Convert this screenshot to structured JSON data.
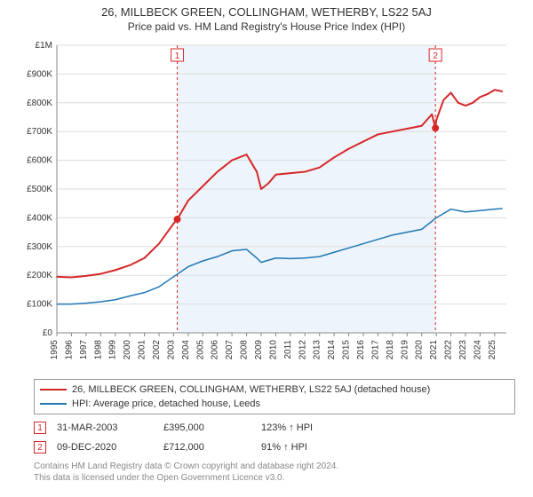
{
  "title": "26, MILLBECK GREEN, COLLINGHAM, WETHERBY, LS22 5AJ",
  "subtitle": "Price paid vs. HM Land Registry's House Price Index (HPI)",
  "chart": {
    "type": "line",
    "background_color": "#ffffff",
    "plot_shade_color": "#eef4fb",
    "grid_color": "#dddddd",
    "axis_color": "#888888",
    "xlim": [
      1995,
      2025.8
    ],
    "ylim": [
      0,
      1000000
    ],
    "ytick_step": 100000,
    "ytick_labels": [
      "£0",
      "£100K",
      "£200K",
      "£300K",
      "£400K",
      "£500K",
      "£600K",
      "£700K",
      "£800K",
      "£900K",
      "£1M"
    ],
    "xtick_step": 1,
    "xtick_labels": [
      "1995",
      "1996",
      "1997",
      "1998",
      "1999",
      "2000",
      "2001",
      "2002",
      "2003",
      "2004",
      "2005",
      "2006",
      "2007",
      "2008",
      "2009",
      "2010",
      "2011",
      "2012",
      "2013",
      "2014",
      "2015",
      "2016",
      "2017",
      "2018",
      "2019",
      "2020",
      "2021",
      "2022",
      "2023",
      "2024",
      "2025"
    ],
    "shade_start_year": 2003.25,
    "shade_end_year": 2020.94,
    "series": [
      {
        "name": "property",
        "color": "#d62728",
        "width": 2,
        "points": [
          [
            1995,
            195000
          ],
          [
            1996,
            193000
          ],
          [
            1997,
            198000
          ],
          [
            1998,
            205000
          ],
          [
            1999,
            218000
          ],
          [
            2000,
            235000
          ],
          [
            2001,
            260000
          ],
          [
            2002,
            310000
          ],
          [
            2003,
            380000
          ],
          [
            2003.25,
            395000
          ],
          [
            2004,
            460000
          ],
          [
            2005,
            510000
          ],
          [
            2006,
            560000
          ],
          [
            2007,
            600000
          ],
          [
            2008,
            620000
          ],
          [
            2008.7,
            560000
          ],
          [
            2009,
            500000
          ],
          [
            2009.5,
            520000
          ],
          [
            2010,
            550000
          ],
          [
            2011,
            555000
          ],
          [
            2012,
            560000
          ],
          [
            2013,
            575000
          ],
          [
            2014,
            610000
          ],
          [
            2015,
            640000
          ],
          [
            2016,
            665000
          ],
          [
            2017,
            690000
          ],
          [
            2018,
            700000
          ],
          [
            2019,
            710000
          ],
          [
            2020,
            720000
          ],
          [
            2020.7,
            760000
          ],
          [
            2020.94,
            712000
          ],
          [
            2021,
            740000
          ],
          [
            2021.5,
            810000
          ],
          [
            2022,
            835000
          ],
          [
            2022.5,
            800000
          ],
          [
            2023,
            790000
          ],
          [
            2023.5,
            800000
          ],
          [
            2024,
            820000
          ],
          [
            2024.5,
            830000
          ],
          [
            2025,
            845000
          ],
          [
            2025.5,
            840000
          ]
        ]
      },
      {
        "name": "hpi",
        "color": "#1f77b4",
        "width": 1.5,
        "points": [
          [
            1995,
            100000
          ],
          [
            1996,
            100000
          ],
          [
            1997,
            103000
          ],
          [
            1998,
            108000
          ],
          [
            1999,
            115000
          ],
          [
            2000,
            128000
          ],
          [
            2001,
            140000
          ],
          [
            2002,
            160000
          ],
          [
            2003,
            195000
          ],
          [
            2004,
            230000
          ],
          [
            2005,
            250000
          ],
          [
            2006,
            265000
          ],
          [
            2007,
            285000
          ],
          [
            2008,
            290000
          ],
          [
            2008.7,
            260000
          ],
          [
            2009,
            245000
          ],
          [
            2010,
            260000
          ],
          [
            2011,
            258000
          ],
          [
            2012,
            260000
          ],
          [
            2013,
            265000
          ],
          [
            2014,
            280000
          ],
          [
            2015,
            295000
          ],
          [
            2016,
            310000
          ],
          [
            2017,
            325000
          ],
          [
            2018,
            340000
          ],
          [
            2019,
            350000
          ],
          [
            2020,
            360000
          ],
          [
            2021,
            400000
          ],
          [
            2022,
            430000
          ],
          [
            2023,
            420000
          ],
          [
            2024,
            425000
          ],
          [
            2025,
            430000
          ],
          [
            2025.5,
            432000
          ]
        ]
      }
    ],
    "event_markers": [
      {
        "label": "1",
        "year": 2003.25,
        "value": 395000,
        "line_color": "#d62728",
        "dash": "3,3"
      },
      {
        "label": "2",
        "year": 2020.94,
        "value": 712000,
        "line_color": "#d62728",
        "dash": "3,3"
      }
    ],
    "event_label_box": {
      "border": "#d62728",
      "fill": "#ffffff",
      "text": "#d62728",
      "fontsize": 10
    }
  },
  "legend": {
    "series1": "26, MILLBECK GREEN, COLLINGHAM, WETHERBY, LS22 5AJ (detached house)",
    "series2": "HPI: Average price, detached house, Leeds"
  },
  "events": [
    {
      "num": "1",
      "date": "31-MAR-2003",
      "price": "£395,000",
      "pct": "123% ↑ HPI"
    },
    {
      "num": "2",
      "date": "09-DEC-2020",
      "price": "£712,000",
      "pct": "91% ↑ HPI"
    }
  ],
  "footnote_line1": "Contains HM Land Registry data © Crown copyright and database right 2024.",
  "footnote_line2": "This data is licensed under the Open Government Licence v3.0."
}
